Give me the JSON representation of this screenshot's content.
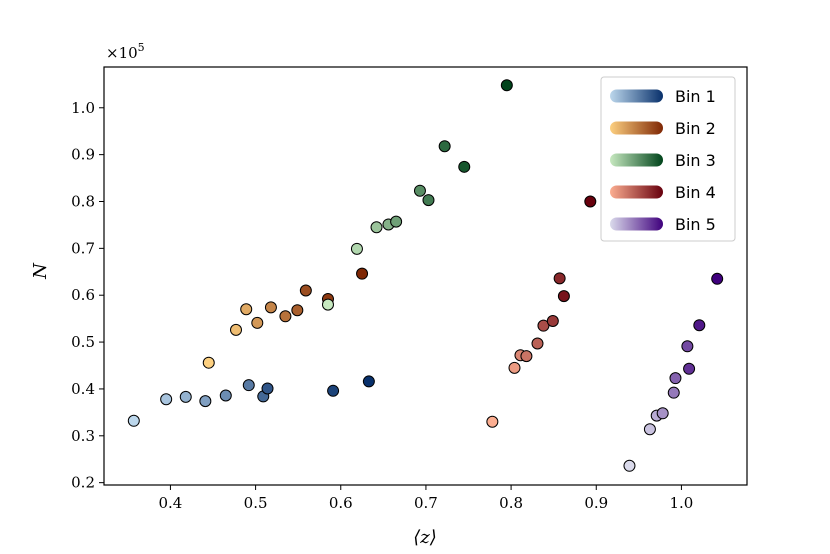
{
  "chart_data": {
    "type": "scatter",
    "title": "",
    "xlabel": "⟨z⟩",
    "ylabel": "N",
    "y_multiplier": "×10",
    "y_multiplier_exp": "5",
    "xlim": [
      0.322,
      1.077
    ],
    "ylim": [
      0.195,
      1.087
    ],
    "xticks": [
      0.4,
      0.5,
      0.6,
      0.7,
      0.8,
      0.9,
      1.0
    ],
    "xtick_labels": [
      "0.4",
      "0.5",
      "0.6",
      "0.7",
      "0.8",
      "0.9",
      "1.0"
    ],
    "yticks": [
      0.2,
      0.3,
      0.4,
      0.5,
      0.6,
      0.7,
      0.8,
      0.9,
      1.0
    ],
    "ytick_labels": [
      "0.2",
      "0.3",
      "0.4",
      "0.5",
      "0.6",
      "0.7",
      "0.8",
      "0.9",
      "1.0"
    ],
    "grid": false,
    "legend_position": "top-right",
    "series": [
      {
        "name": "Bin 1",
        "colors": [
          "#bcd7ec",
          "#08306b"
        ],
        "x": [
          0.357,
          0.395,
          0.418,
          0.441,
          0.465,
          0.492,
          0.509,
          0.514,
          0.591,
          0.633
        ],
        "y": [
          0.332,
          0.378,
          0.383,
          0.374,
          0.386,
          0.408,
          0.384,
          0.401,
          0.396,
          0.416
        ]
      },
      {
        "name": "Bin 2",
        "colors": [
          "#fdd080",
          "#7f2704"
        ],
        "x": [
          0.445,
          0.477,
          0.489,
          0.502,
          0.518,
          0.535,
          0.549,
          0.559,
          0.585,
          0.625
        ],
        "y": [
          0.456,
          0.526,
          0.57,
          0.541,
          0.574,
          0.555,
          0.568,
          0.61,
          0.592,
          0.646
        ]
      },
      {
        "name": "Bin 3",
        "colors": [
          "#c7e9c0",
          "#00441b"
        ],
        "x": [
          0.585,
          0.619,
          0.642,
          0.656,
          0.665,
          0.693,
          0.703,
          0.722,
          0.745,
          0.795
        ],
        "y": [
          0.58,
          0.699,
          0.745,
          0.751,
          0.757,
          0.823,
          0.803,
          0.918,
          0.874,
          1.048
        ]
      },
      {
        "name": "Bin 4",
        "colors": [
          "#fcae91",
          "#67000d"
        ],
        "x": [
          0.778,
          0.804,
          0.811,
          0.818,
          0.831,
          0.838,
          0.849,
          0.857,
          0.862,
          0.893
        ],
        "y": [
          0.33,
          0.445,
          0.472,
          0.47,
          0.497,
          0.535,
          0.545,
          0.636,
          0.598,
          0.8
        ]
      },
      {
        "name": "Bin 5",
        "colors": [
          "#dadaeb",
          "#3f007d"
        ],
        "x": [
          0.939,
          0.963,
          0.971,
          0.978,
          0.991,
          0.993,
          1.007,
          1.009,
          1.021,
          1.042
        ],
        "y": [
          0.236,
          0.314,
          0.343,
          0.348,
          0.392,
          0.423,
          0.491,
          0.443,
          0.536,
          0.635
        ]
      }
    ]
  }
}
